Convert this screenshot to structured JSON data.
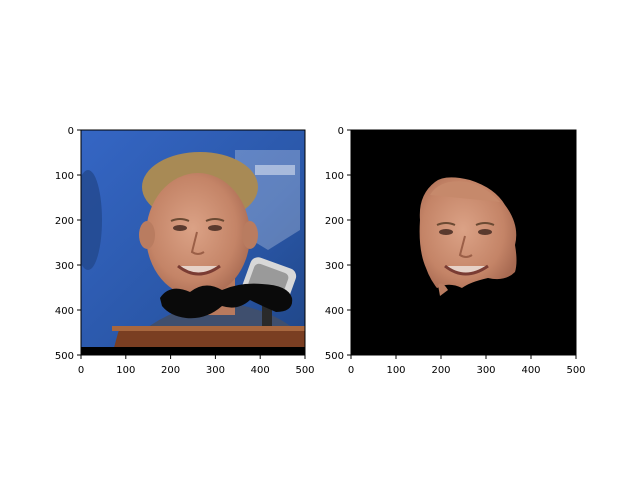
{
  "panels": [
    {
      "name": "original-image-with-mustache",
      "content": "photo of a smiling man with a drawn black mustache in front of a blue background and a microphone",
      "xticks": [
        "0",
        "100",
        "200",
        "300",
        "400",
        "500"
      ],
      "yticks": [
        "0",
        "100",
        "200",
        "300",
        "400",
        "500"
      ]
    },
    {
      "name": "face-mask-output",
      "content": "black background with only the segmented face region visible",
      "xticks": [
        "0",
        "100",
        "200",
        "300",
        "400",
        "500"
      ],
      "yticks": [
        "0",
        "100",
        "200",
        "300",
        "400",
        "500"
      ]
    }
  ],
  "colors": {
    "background_blue": "#2f5fb8",
    "skin": "#c98f73",
    "hair": "#a88a55",
    "mustache": "#0a0a0a",
    "podium": "#7a3e22",
    "mask_background": "#000000"
  }
}
